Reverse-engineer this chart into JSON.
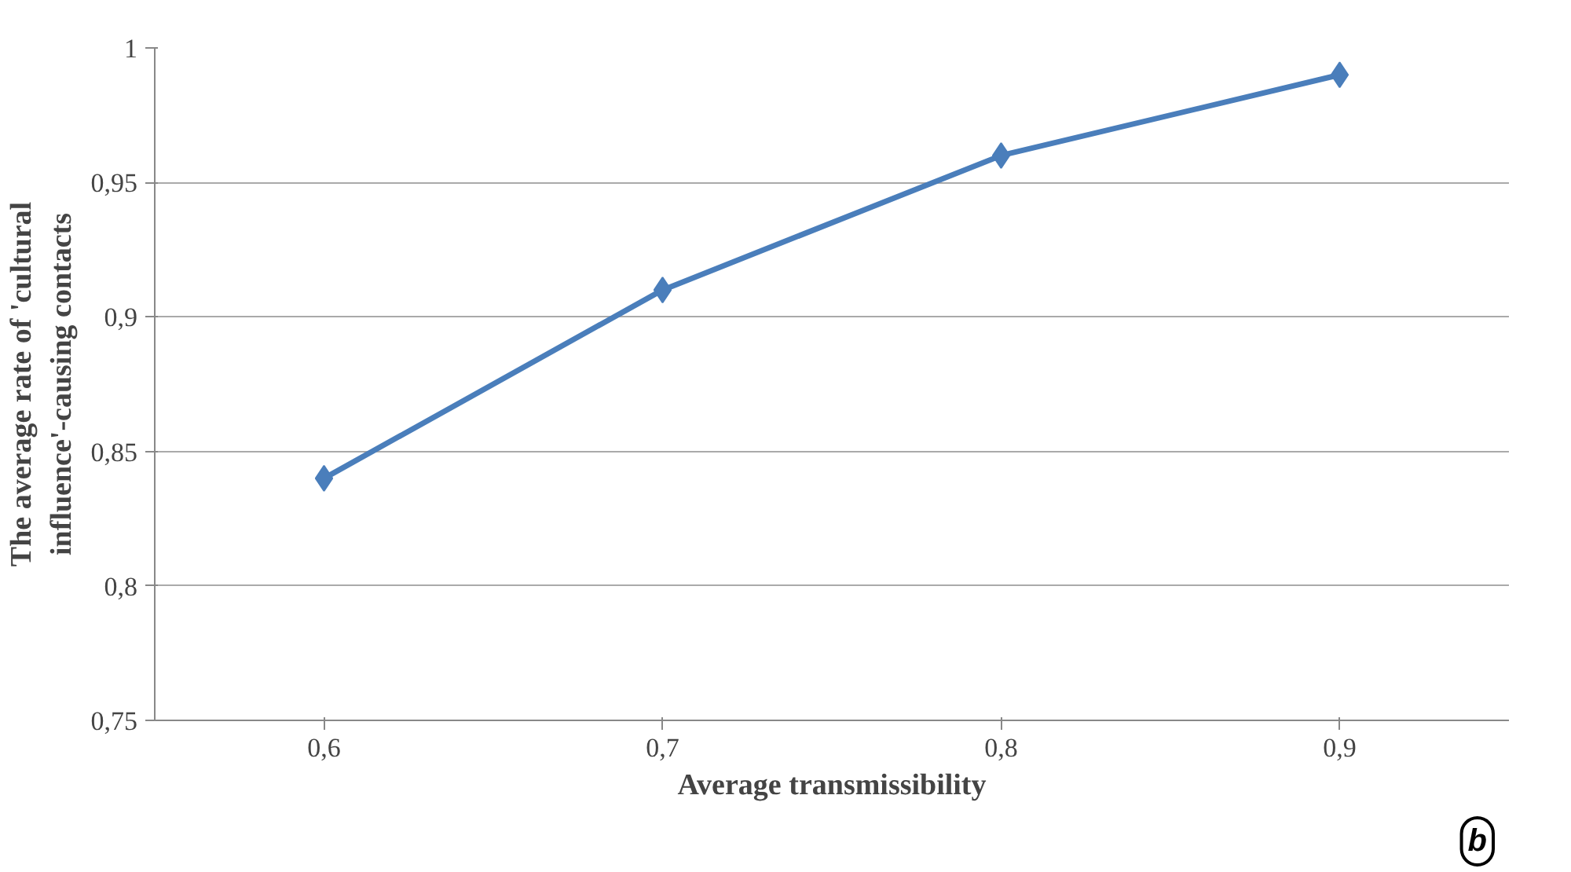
{
  "chart_data": {
    "type": "line",
    "xlabel": "Average transmissibility",
    "ylabel": "The average rate of 'cultural\ninfluence'-causing contacts",
    "categories": [
      "0,6",
      "0,7",
      "0,8",
      "0,9"
    ],
    "series": [
      {
        "color": "#4a7ebb",
        "values": [
          0.84,
          0.91,
          0.96,
          0.99
        ]
      }
    ],
    "ylim": [
      0.75,
      1
    ],
    "yticks": [
      {
        "value": 0.75,
        "label": "0,75"
      },
      {
        "value": 0.8,
        "label": "0,8"
      },
      {
        "value": 0.85,
        "label": "0,85"
      },
      {
        "value": 0.9,
        "label": "0,9"
      },
      {
        "value": 0.95,
        "label": "0,95"
      },
      1
    ],
    "grid": "y",
    "marker": "diamond",
    "line_style": "solid",
    "annotations": [
      "b"
    ]
  }
}
